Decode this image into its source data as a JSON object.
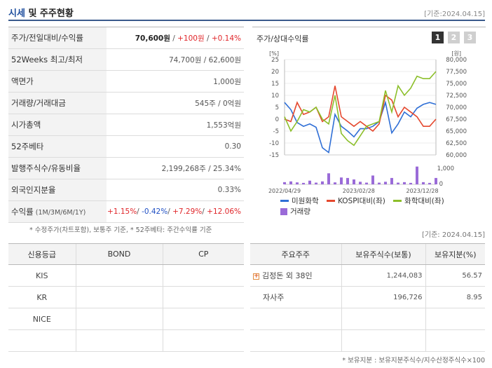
{
  "header": {
    "title_a": "시세",
    "title_b": " 및 주주현황",
    "asof": "[기준:2024.04.15]"
  },
  "info": {
    "price": {
      "label": "주가/전일대비/수익률",
      "v1": "70,600원",
      "sep1": " / ",
      "v2": "+100원",
      "sep2": " / ",
      "v3": "+0.14%"
    },
    "week52": {
      "label": "52Weeks 최고/최저",
      "value": "74,700원 / 62,600원"
    },
    "par": {
      "label": "액면가",
      "value": "1,000원"
    },
    "volume": {
      "label": "거래량/거래대금",
      "value": "545주 / 0억원"
    },
    "mcap": {
      "label": "시가총액",
      "value": "1,553억원"
    },
    "beta": {
      "label": "52주베타",
      "value": "0.30"
    },
    "shares": {
      "label": "발행주식수/유동비율",
      "value": "2,199,268주 / 25.34%"
    },
    "foreign": {
      "label": "외국인지분율",
      "value": "0.33%"
    },
    "returns": {
      "label": "수익률",
      "label_sub": " (1M/3M/6M/1Y)",
      "r1": "+1.15%",
      "r2": "-0.42%",
      "r3": "+7.29%",
      "r4": "+12.06%",
      "sep": "/ "
    }
  },
  "footnote_left": "* 수정주가(차트포함), 보통주 기준, * 52주베타: 주간수익률 기준",
  "chart_panel": {
    "title": "주가/상대수익률",
    "buttons": [
      "1",
      "2",
      "3"
    ],
    "legend": {
      "s1": "미원화학",
      "s2": "KOSPI대비(좌)",
      "s3": "화학대비(좌)",
      "vol": "거래량"
    }
  },
  "chart_data": {
    "type": "line",
    "left_axis_label": "[%]",
    "right_axis_label": "[원]",
    "left_ticks": [
      "25",
      "20",
      "15",
      "10",
      "5",
      "0",
      "-5",
      "-10",
      "-15"
    ],
    "right_ticks": [
      "80,000",
      "77,500",
      "75,000",
      "72,500",
      "70,000",
      "67,500",
      "65,000",
      "62,500",
      "60,000"
    ],
    "vol_ticks": [
      "1,000",
      "0"
    ],
    "x_ticks": [
      "2022/04/29",
      "2023/02/28",
      "2023/12/28"
    ],
    "ylim_left": [
      -15,
      25
    ],
    "ylim_right": [
      60000,
      80000
    ],
    "series": [
      {
        "name": "미원화학",
        "color": "#2f6fd6",
        "axis": "right",
        "values": [
          71000,
          69500,
          66800,
          66000,
          66500,
          65800,
          61500,
          60500,
          68500,
          66000,
          65000,
          63800,
          65500,
          65500,
          66000,
          67000,
          71000,
          64600,
          66500,
          69000,
          68000,
          69800,
          70600,
          71000,
          70600
        ]
      },
      {
        "name": "KOSPI대비(좌)",
        "color": "#e5482e",
        "axis": "left",
        "values": [
          0,
          -1,
          7,
          2,
          3,
          5,
          -1,
          1,
          14,
          1,
          -1,
          -3,
          -1,
          -3,
          -5,
          -2,
          10,
          8,
          1,
          5,
          3,
          1,
          -3,
          -3,
          0
        ]
      },
      {
        "name": "화학대비(좌)",
        "color": "#8cbf2a",
        "axis": "left",
        "values": [
          1,
          -5,
          -1,
          4,
          3,
          5,
          0,
          -2,
          10,
          -6,
          -9,
          -11,
          -7,
          -3,
          -2,
          -1,
          12,
          3,
          14,
          10,
          13,
          18,
          17,
          17,
          20
        ]
      }
    ],
    "volume": {
      "name": "거래량",
      "color": "#9a6bd8",
      "values": [
        180,
        240,
        160,
        120,
        300,
        140,
        240,
        900,
        160,
        560,
        520,
        400,
        210,
        140,
        720,
        140,
        210,
        520,
        140,
        180,
        120,
        1450,
        180,
        120,
        520
      ]
    }
  },
  "asof2": "[기준: 2024.04.15]",
  "credit": {
    "headers": [
      "신용등급",
      "BOND",
      "CP"
    ],
    "rows": [
      [
        "KIS",
        "",
        ""
      ],
      [
        "KR",
        "",
        ""
      ],
      [
        "NICE",
        "",
        ""
      ],
      [
        "",
        "",
        ""
      ]
    ]
  },
  "holders": {
    "headers": [
      "주요주주",
      "보유주식수(보통)",
      "보유지분(%)"
    ],
    "rows": [
      {
        "name": "김정돈 외 38인",
        "shares": "1,244,083",
        "pct": "56.57"
      },
      {
        "name": "자사주",
        "shares": "196,726",
        "pct": "8.95"
      },
      {
        "name": "",
        "shares": "",
        "pct": ""
      },
      {
        "name": "",
        "shares": "",
        "pct": ""
      }
    ]
  },
  "footnote_right": "* 보유지분 : 보유지분주식수/지수산정주식수×100"
}
